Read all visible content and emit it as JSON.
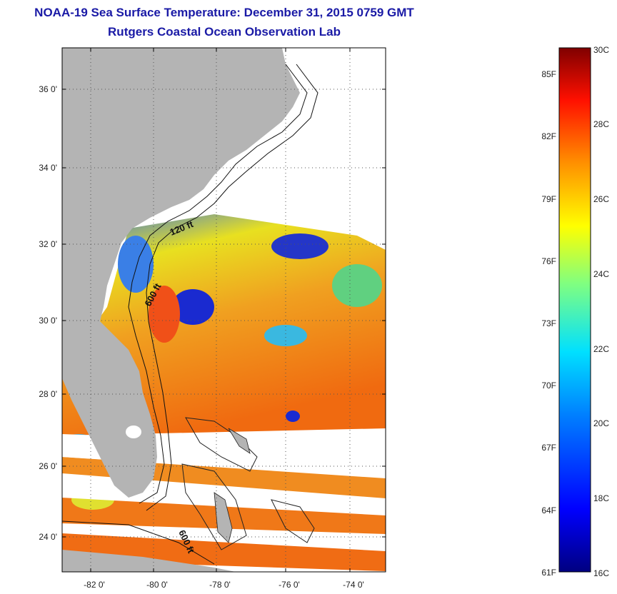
{
  "header": {
    "title": "NOAA-19 Sea Surface Temperature:  December 31, 2015 0759 GMT",
    "subtitle": "Rutgers Coastal Ocean Observation Lab"
  },
  "map": {
    "lat_ticks": [
      "24 0'",
      "26 0'",
      "28 0'",
      "30 0'",
      "32 0'",
      "34 0'",
      "36 0'"
    ],
    "lon_ticks": [
      "-82 0'",
      "-80 0'",
      "-78 0'",
      "-76 0'",
      "-74 0'"
    ],
    "contour_labels": [
      "120 ft",
      "600 ft",
      "600 ft"
    ],
    "land_color": "#b4b4b4",
    "cloud_color": "#ffffff"
  },
  "colorbar": {
    "celsius": [
      "30C",
      "28C",
      "26C",
      "24C",
      "22C",
      "20C",
      "18C",
      "16C"
    ],
    "fahrenheit": [
      "85F",
      "82F",
      "79F",
      "76F",
      "73F",
      "70F",
      "67F",
      "64F",
      "61F"
    ],
    "colors": [
      "#000080",
      "#0000ff",
      "#0080ff",
      "#00ffff",
      "#80ff80",
      "#ffff00",
      "#ff8000",
      "#ff0000",
      "#800000"
    ]
  }
}
